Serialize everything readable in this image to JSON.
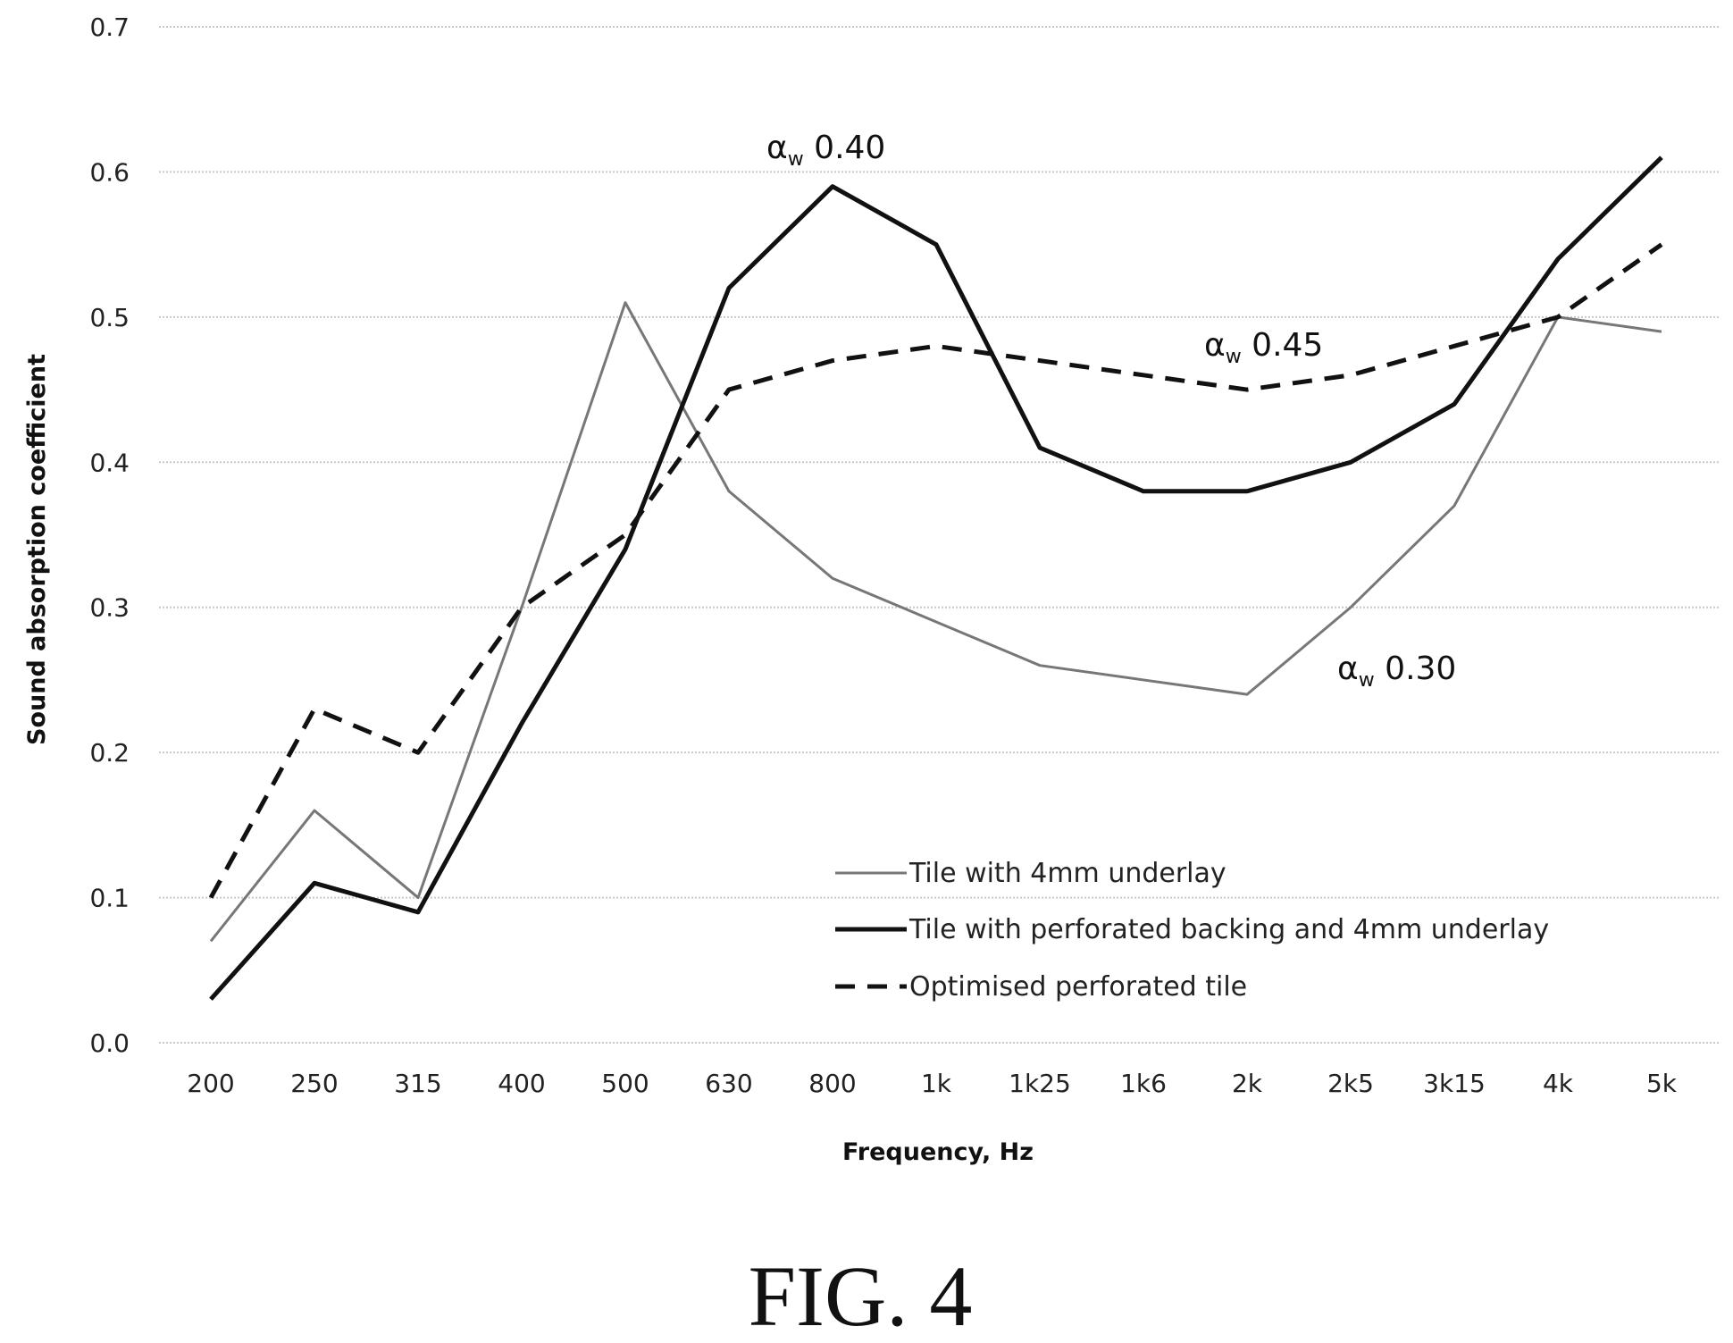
{
  "chart_data": {
    "type": "line",
    "xlabel": "Frequency, Hz",
    "ylabel": "Sound absorption coefficient",
    "categories": [
      "200",
      "250",
      "315",
      "400",
      "500",
      "630",
      "800",
      "1k",
      "1k25",
      "1k6",
      "2k",
      "2k5",
      "3k15",
      "4k",
      "5k"
    ],
    "ylim": [
      0.0,
      0.7
    ],
    "yticks": [
      "0.0",
      "0.1",
      "0.2",
      "0.3",
      "0.4",
      "0.5",
      "0.6",
      "0.7"
    ],
    "grid": true,
    "legend_position": "bottom-right",
    "series": [
      {
        "name": "Tile with 4mm underlay",
        "style": "solid-thin",
        "color": "#777777",
        "values": [
          0.07,
          0.16,
          0.1,
          0.3,
          0.51,
          0.38,
          0.32,
          0.29,
          0.26,
          0.25,
          0.24,
          0.3,
          0.37,
          0.5,
          0.49
        ]
      },
      {
        "name": "Tile with perforated backing and 4mm underlay",
        "style": "solid-thick",
        "color": "#111111",
        "values": [
          0.03,
          0.11,
          0.09,
          0.22,
          0.34,
          0.52,
          0.59,
          0.55,
          0.41,
          0.38,
          0.38,
          0.4,
          0.44,
          0.54,
          0.61
        ]
      },
      {
        "name": "Optimised perforated tile",
        "style": "dashed",
        "color": "#111111",
        "values": [
          0.1,
          0.23,
          0.2,
          0.3,
          0.35,
          0.45,
          0.47,
          0.48,
          0.47,
          0.46,
          0.45,
          0.46,
          0.48,
          0.5,
          0.55
        ]
      }
    ],
    "annotations": [
      {
        "greek": "α",
        "sub": "w",
        "value": "0.40",
        "series": 1
      },
      {
        "greek": "α",
        "sub": "w",
        "value": "0.45",
        "series": 2
      },
      {
        "greek": "α",
        "sub": "w",
        "value": "0.30",
        "series": 0
      }
    ]
  },
  "caption": "FIG. 4"
}
